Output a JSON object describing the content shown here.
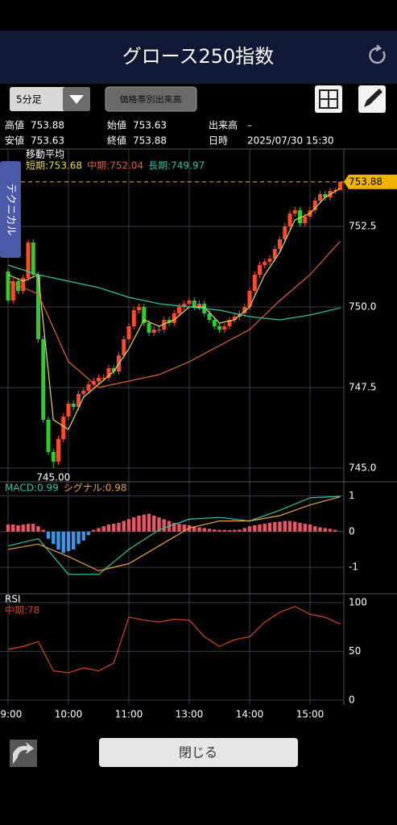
{
  "header": {
    "title": "グロース250指数"
  },
  "toolbar": {
    "interval": "5分足",
    "volume_button": "価格帯別出来高"
  },
  "info": {
    "rows": [
      [
        "高値",
        "753.88",
        "始値",
        "753.63",
        "出来高",
        "–"
      ],
      [
        "安値",
        "753.63",
        "終値",
        "753.88",
        "日時",
        "2025/07/30 15:30"
      ]
    ]
  },
  "side_tab": "テクニカル",
  "close_button": "閉じる",
  "chart_data": [
    {
      "type": "candlestick",
      "title": "移動平均",
      "categories": [
        "09:00",
        null,
        null,
        null,
        null,
        null,
        null,
        null,
        null,
        null,
        null,
        null,
        "10:00",
        null,
        null,
        null,
        null,
        null,
        null,
        null,
        null,
        null,
        null,
        null,
        "11:00",
        null,
        null,
        null,
        null,
        null,
        null,
        null,
        null,
        null,
        null,
        null,
        "13:00",
        null,
        null,
        null,
        null,
        null,
        null,
        null,
        null,
        null,
        null,
        null,
        "14:00",
        null,
        null,
        null,
        null,
        null,
        null,
        null,
        null,
        null,
        null,
        null,
        "15:00",
        null,
        null,
        null,
        null,
        null,
        null
      ],
      "open": [
        751.1,
        750.2,
        750.8,
        750.5,
        750.9,
        752.0,
        751.0,
        749.0,
        746.5,
        745.5,
        745.2,
        745.9,
        746.6,
        747.0,
        746.9,
        747.3,
        747.4,
        747.6,
        747.7,
        747.8,
        747.8,
        748.1,
        748.0,
        748.5,
        749.0,
        749.4,
        749.9,
        750.0,
        749.5,
        749.2,
        749.3,
        749.3,
        749.6,
        749.5,
        749.8,
        750.0,
        750.1,
        750.2,
        750.0,
        750.1,
        749.8,
        749.6,
        749.4,
        749.3,
        749.4,
        749.6,
        749.7,
        749.8,
        750.0,
        750.5,
        751.0,
        751.3,
        751.4,
        751.5,
        751.8,
        752.1,
        752.5,
        752.9,
        753.0,
        752.6,
        752.8,
        753.0,
        753.3,
        753.5,
        753.4,
        753.6,
        753.63
      ],
      "high": [
        751.2,
        750.9,
        750.9,
        751.0,
        752.1,
        752.1,
        751.1,
        749.1,
        746.6,
        745.6,
        746.0,
        746.7,
        747.1,
        747.1,
        747.4,
        747.5,
        747.7,
        747.8,
        747.9,
        747.9,
        748.2,
        748.2,
        748.6,
        749.1,
        749.5,
        750.0,
        750.1,
        750.1,
        749.6,
        749.4,
        749.4,
        749.7,
        749.7,
        749.9,
        750.1,
        750.2,
        750.3,
        750.3,
        750.2,
        750.2,
        749.9,
        749.7,
        749.5,
        749.5,
        749.7,
        749.8,
        749.9,
        750.1,
        750.6,
        751.1,
        751.4,
        751.5,
        751.6,
        751.9,
        752.2,
        752.6,
        753.0,
        753.1,
        753.1,
        752.9,
        753.1,
        753.4,
        753.6,
        753.6,
        753.7,
        753.7,
        753.88
      ],
      "low": [
        750.1,
        750.1,
        750.4,
        750.4,
        750.8,
        750.9,
        748.9,
        746.4,
        745.4,
        745.0,
        745.1,
        745.8,
        746.5,
        746.8,
        746.8,
        747.2,
        747.3,
        747.5,
        747.6,
        747.7,
        747.7,
        747.9,
        747.9,
        748.4,
        748.9,
        749.3,
        749.8,
        749.4,
        749.1,
        749.1,
        749.2,
        749.2,
        749.4,
        749.4,
        749.7,
        749.9,
        750.0,
        749.9,
        749.9,
        749.7,
        749.5,
        749.3,
        749.2,
        749.2,
        749.3,
        749.5,
        749.6,
        749.7,
        749.9,
        750.4,
        750.9,
        751.2,
        751.3,
        751.4,
        751.7,
        752.0,
        752.4,
        752.8,
        752.5,
        752.5,
        752.7,
        752.9,
        753.2,
        753.3,
        753.3,
        753.5,
        753.63
      ],
      "close": [
        750.2,
        750.8,
        750.5,
        750.9,
        752.0,
        751.0,
        749.0,
        746.5,
        745.5,
        745.2,
        745.9,
        746.6,
        747.0,
        746.9,
        747.3,
        747.4,
        747.6,
        747.7,
        747.8,
        747.8,
        748.1,
        748.0,
        748.5,
        749.0,
        749.4,
        749.9,
        750.0,
        749.5,
        749.2,
        749.3,
        749.3,
        749.6,
        749.5,
        749.8,
        750.0,
        750.1,
        750.2,
        750.0,
        750.1,
        749.8,
        749.6,
        749.4,
        749.3,
        749.4,
        749.6,
        749.7,
        749.8,
        750.0,
        750.5,
        751.0,
        751.3,
        751.4,
        751.5,
        751.8,
        752.1,
        752.5,
        752.9,
        753.0,
        752.6,
        752.8,
        753.0,
        753.3,
        753.5,
        753.4,
        753.6,
        753.63,
        753.88
      ],
      "up_color": "#ff4a2a",
      "down_color": "#2ecc2e",
      "series": [
        {
          "name": "短期:753.68",
          "color": "#e8dc4a",
          "x": [
            0,
            3,
            6,
            9,
            12,
            15,
            18,
            21,
            24,
            27,
            30,
            33,
            36,
            39,
            42,
            45,
            48,
            51,
            54,
            57,
            60,
            63,
            66
          ],
          "values": [
            751.0,
            750.8,
            751.0,
            746.5,
            746.2,
            747.2,
            747.6,
            748.0,
            748.7,
            749.6,
            749.4,
            749.6,
            750.0,
            750.0,
            749.5,
            749.6,
            750.0,
            751.0,
            751.7,
            752.7,
            752.9,
            753.4,
            753.68
          ]
        },
        {
          "name": "中期:752.04",
          "color": "#e0603a",
          "x": [
            0,
            6,
            12,
            18,
            24,
            30,
            36,
            42,
            48,
            54,
            60,
            66
          ],
          "values": [
            750.8,
            750.4,
            748.3,
            747.5,
            747.7,
            747.9,
            748.3,
            748.8,
            749.3,
            750.2,
            751.0,
            752.04
          ]
        },
        {
          "name": "長期:749.97",
          "color": "#2ec4a0",
          "x": [
            0,
            6,
            12,
            18,
            24,
            30,
            36,
            42,
            48,
            54,
            60,
            66
          ],
          "values": [
            751.3,
            751.0,
            750.8,
            750.6,
            750.3,
            750.1,
            750.0,
            749.9,
            749.7,
            749.6,
            749.75,
            749.97
          ]
        }
      ],
      "ylim": [
        744.6,
        754.9
      ],
      "yticks": [
        752.5,
        {
          "value": 750,
          "label": "750.0"
        },
        747.5,
        {
          "value": 745,
          "label": "745.0"
        }
      ],
      "last_price": 753.88,
      "low_label": {
        "value": 745,
        "label": "745.00"
      }
    },
    {
      "type": "macd",
      "histogram": {
        "up_color": "#e85565",
        "down_color": "#3a96e6",
        "values": [
          0.2,
          0.2,
          0.18,
          0.2,
          0.22,
          0.22,
          0.15,
          0.05,
          -0.2,
          -0.35,
          -0.5,
          -0.6,
          -0.55,
          -0.5,
          -0.35,
          -0.25,
          -0.1,
          0.05,
          0.1,
          0.15,
          0.2,
          0.22,
          0.25,
          0.3,
          0.35,
          0.4,
          0.45,
          0.48,
          0.5,
          0.45,
          0.4,
          0.35,
          0.3,
          0.25,
          0.22,
          0.2,
          0.18,
          0.15,
          0.12,
          0.1,
          0.08,
          0.06,
          0.05,
          0.05,
          0.04,
          0.05,
          0.06,
          0.1,
          0.15,
          0.18,
          0.2,
          0.22,
          0.25,
          0.27,
          0.28,
          0.3,
          0.3,
          0.28,
          0.25,
          0.22,
          0.2,
          0.15,
          0.12,
          0.1,
          0.08,
          0.05,
          0.01
        ]
      },
      "series": [
        {
          "name": "MACD:0.99",
          "color": "#2ec4a0",
          "x": [
            0,
            6,
            12,
            18,
            24,
            30,
            36,
            42,
            48,
            54,
            60,
            66
          ],
          "values": [
            -0.4,
            -0.2,
            -1.2,
            -1.2,
            -0.5,
            0.05,
            0.35,
            0.4,
            0.3,
            0.6,
            0.95,
            0.99
          ]
        },
        {
          "name": "シグナル:0.98",
          "color": "#e8a23a",
          "x": [
            0,
            6,
            12,
            18,
            24,
            30,
            36,
            42,
            48,
            54,
            60,
            66
          ],
          "values": [
            -0.5,
            -0.35,
            -0.7,
            -1.1,
            -0.9,
            -0.4,
            0.1,
            0.3,
            0.3,
            0.45,
            0.75,
            0.98
          ]
        }
      ],
      "ylim": [
        -1.7,
        1.4
      ],
      "yticks": [
        1,
        0,
        -1
      ]
    },
    {
      "type": "line",
      "title": "RSI",
      "series": [
        {
          "name": "中期:78",
          "color": "#d8431f",
          "x": [
            0,
            3,
            6,
            9,
            12,
            15,
            18,
            21,
            24,
            27,
            30,
            33,
            36,
            39,
            42,
            45,
            48,
            51,
            54,
            57,
            60,
            63,
            66
          ],
          "values": [
            52,
            55,
            60,
            30,
            28,
            33,
            30,
            38,
            85,
            82,
            80,
            83,
            82,
            65,
            55,
            62,
            65,
            80,
            90,
            96,
            88,
            85,
            78
          ]
        }
      ],
      "ylim": [
        -5,
        109
      ],
      "yticks": [
        100,
        50,
        0
      ]
    }
  ]
}
